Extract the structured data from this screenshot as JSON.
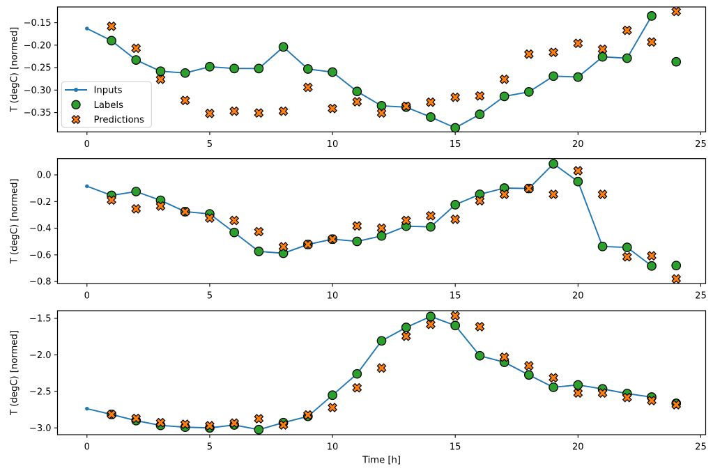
{
  "figure": {
    "background": "#ffffff",
    "xlabel": "Time [h]",
    "ylabel": "T (degC) [normed]"
  },
  "legend": {
    "entries": [
      {
        "label": "Inputs",
        "marker": "line-dot",
        "color": "#1f77b4"
      },
      {
        "label": "Labels",
        "marker": "circle",
        "color": "#2ca02c"
      },
      {
        "label": "Predictions",
        "marker": "x",
        "color": "#ff7f0e"
      }
    ]
  },
  "colors": {
    "inputs": "#1f77b4",
    "labels": "#2ca02c",
    "predictions": "#ff7f0e",
    "marker_edge": "#000000",
    "spine": "#000000",
    "legend_border": "#cccccc"
  },
  "chart_data": [
    {
      "type": "line",
      "ylabel": "T (degC) [normed]",
      "grid": false,
      "xlim": [
        -1.2,
        25.2
      ],
      "ylim": [
        -0.393,
        -0.115
      ],
      "x_ticks": [
        0,
        5,
        10,
        15,
        20,
        25
      ],
      "x_tick_labels": [
        "0",
        "5",
        "10",
        "15",
        "20",
        "25"
      ],
      "y_ticks": [
        -0.15,
        -0.2,
        -0.25,
        -0.3,
        -0.35
      ],
      "y_tick_labels": [
        "−0.15",
        "−0.20",
        "−0.25",
        "−0.30",
        "−0.35"
      ],
      "series": [
        {
          "name": "Inputs",
          "style": "line",
          "color": "#1f77b4",
          "x": [
            0,
            1,
            2,
            3,
            4,
            5,
            6,
            7,
            8,
            9,
            10,
            11,
            12,
            13,
            14,
            15,
            16,
            17,
            18,
            19,
            20,
            21,
            22,
            23
          ],
          "y": [
            -0.163,
            -0.19,
            -0.233,
            -0.258,
            -0.262,
            -0.248,
            -0.252,
            -0.252,
            -0.204,
            -0.253,
            -0.26,
            -0.303,
            -0.335,
            -0.338,
            -0.36,
            -0.384,
            -0.354,
            -0.314,
            -0.304,
            -0.269,
            -0.271,
            -0.226,
            -0.229,
            -0.135
          ]
        },
        {
          "name": "Labels",
          "style": "scatter-circle",
          "color": "#2ca02c",
          "x": [
            1,
            2,
            3,
            4,
            5,
            6,
            7,
            8,
            9,
            10,
            11,
            12,
            13,
            14,
            15,
            16,
            17,
            18,
            19,
            20,
            21,
            22,
            23,
            24
          ],
          "y": [
            -0.19,
            -0.233,
            -0.258,
            -0.262,
            -0.248,
            -0.252,
            -0.252,
            -0.204,
            -0.253,
            -0.26,
            -0.303,
            -0.335,
            -0.338,
            -0.36,
            -0.384,
            -0.354,
            -0.314,
            -0.304,
            -0.269,
            -0.271,
            -0.226,
            -0.229,
            -0.135,
            -0.237
          ]
        },
        {
          "name": "Predictions",
          "style": "scatter-x",
          "color": "#ff7f0e",
          "x": [
            1,
            2,
            3,
            4,
            5,
            6,
            7,
            8,
            9,
            10,
            11,
            12,
            13,
            14,
            15,
            16,
            17,
            18,
            19,
            20,
            21,
            22,
            23,
            24
          ],
          "y": [
            -0.158,
            -0.207,
            -0.276,
            -0.323,
            -0.352,
            -0.347,
            -0.351,
            -0.347,
            -0.294,
            -0.341,
            -0.326,
            -0.351,
            -0.336,
            -0.327,
            -0.316,
            -0.313,
            -0.276,
            -0.22,
            -0.216,
            -0.196,
            -0.209,
            -0.167,
            -0.193,
            -0.125
          ]
        }
      ]
    },
    {
      "type": "line",
      "ylabel": "T (degC) [normed]",
      "grid": false,
      "xlim": [
        -1.2,
        25.2
      ],
      "ylim": [
        -0.815,
        0.122
      ],
      "x_ticks": [
        0,
        5,
        10,
        15,
        20,
        25
      ],
      "x_tick_labels": [
        "0",
        "5",
        "10",
        "15",
        "20",
        "25"
      ],
      "y_ticks": [
        0.0,
        -0.2,
        -0.4,
        -0.6,
        -0.8
      ],
      "y_tick_labels": [
        "0.0",
        "−0.2",
        "−0.4",
        "−0.6",
        "−0.8"
      ],
      "series": [
        {
          "name": "Inputs",
          "style": "line",
          "color": "#1f77b4",
          "x": [
            0,
            1,
            2,
            3,
            4,
            5,
            6,
            7,
            8,
            9,
            10,
            11,
            12,
            13,
            14,
            15,
            16,
            17,
            18,
            19,
            20,
            21,
            22,
            23
          ],
          "y": [
            -0.085,
            -0.154,
            -0.125,
            -0.191,
            -0.276,
            -0.293,
            -0.432,
            -0.574,
            -0.588,
            -0.522,
            -0.482,
            -0.499,
            -0.458,
            -0.385,
            -0.39,
            -0.224,
            -0.146,
            -0.099,
            -0.102,
            0.083,
            -0.05,
            -0.537,
            -0.544,
            -0.683
          ]
        },
        {
          "name": "Labels",
          "style": "scatter-circle",
          "color": "#2ca02c",
          "x": [
            1,
            2,
            3,
            4,
            5,
            6,
            7,
            8,
            9,
            10,
            11,
            12,
            13,
            14,
            15,
            16,
            17,
            18,
            19,
            20,
            21,
            22,
            23,
            24
          ],
          "y": [
            -0.154,
            -0.125,
            -0.191,
            -0.276,
            -0.293,
            -0.432,
            -0.574,
            -0.588,
            -0.522,
            -0.482,
            -0.499,
            -0.458,
            -0.385,
            -0.39,
            -0.224,
            -0.146,
            -0.099,
            -0.102,
            0.083,
            -0.05,
            -0.537,
            -0.544,
            -0.683,
            -0.68
          ]
        },
        {
          "name": "Predictions",
          "style": "scatter-x",
          "color": "#ff7f0e",
          "x": [
            1,
            2,
            3,
            4,
            5,
            6,
            7,
            8,
            9,
            10,
            11,
            12,
            13,
            14,
            15,
            16,
            17,
            18,
            19,
            20,
            21,
            22,
            23,
            24
          ],
          "y": [
            -0.189,
            -0.255,
            -0.234,
            -0.276,
            -0.324,
            -0.342,
            -0.426,
            -0.539,
            -0.522,
            -0.482,
            -0.383,
            -0.4,
            -0.342,
            -0.307,
            -0.333,
            -0.194,
            -0.146,
            -0.102,
            -0.146,
            0.031,
            -0.146,
            -0.615,
            -0.607,
            -0.78
          ]
        }
      ]
    },
    {
      "type": "line",
      "ylabel": "T (degC) [normed]",
      "xlabel": "Time [h]",
      "grid": false,
      "xlim": [
        -1.2,
        25.2
      ],
      "ylim": [
        -3.093,
        -1.395
      ],
      "x_ticks": [
        0,
        5,
        10,
        15,
        20,
        25
      ],
      "x_tick_labels": [
        "0",
        "5",
        "10",
        "15",
        "20",
        "25"
      ],
      "y_ticks": [
        -1.5,
        -2.0,
        -2.5,
        -3.0
      ],
      "y_tick_labels": [
        "−1.5",
        "−2.0",
        "−2.5",
        "−3.0"
      ],
      "series": [
        {
          "name": "Inputs",
          "style": "line",
          "color": "#1f77b4",
          "x": [
            0,
            1,
            2,
            3,
            4,
            5,
            6,
            7,
            8,
            9,
            10,
            11,
            12,
            13,
            14,
            15,
            16,
            17,
            18,
            19,
            20,
            21,
            22,
            23
          ],
          "y": [
            -2.737,
            -2.816,
            -2.9,
            -2.966,
            -2.99,
            -3.0,
            -2.96,
            -3.024,
            -2.928,
            -2.842,
            -2.552,
            -2.26,
            -1.808,
            -1.624,
            -1.474,
            -1.598,
            -2.012,
            -2.101,
            -2.275,
            -2.444,
            -2.412,
            -2.466,
            -2.53,
            -2.578
          ]
        },
        {
          "name": "Labels",
          "style": "scatter-circle",
          "color": "#2ca02c",
          "x": [
            1,
            2,
            3,
            4,
            5,
            6,
            7,
            8,
            9,
            10,
            11,
            12,
            13,
            14,
            15,
            16,
            17,
            18,
            19,
            20,
            21,
            22,
            23,
            24
          ],
          "y": [
            -2.816,
            -2.9,
            -2.966,
            -2.99,
            -3.0,
            -2.96,
            -3.024,
            -2.928,
            -2.842,
            -2.552,
            -2.26,
            -1.808,
            -1.624,
            -1.474,
            -1.598,
            -2.012,
            -2.101,
            -2.275,
            -2.444,
            -2.412,
            -2.466,
            -2.53,
            -2.578,
            -2.664
          ]
        },
        {
          "name": "Predictions",
          "style": "scatter-x",
          "color": "#ff7f0e",
          "x": [
            1,
            2,
            3,
            4,
            5,
            6,
            7,
            8,
            9,
            10,
            11,
            12,
            13,
            14,
            15,
            16,
            17,
            18,
            19,
            20,
            21,
            22,
            23,
            24
          ],
          "y": [
            -2.816,
            -2.87,
            -2.928,
            -2.95,
            -2.97,
            -2.934,
            -2.874,
            -2.96,
            -2.823,
            -2.721,
            -2.451,
            -2.18,
            -1.745,
            -1.583,
            -1.465,
            -1.614,
            -2.031,
            -2.149,
            -2.314,
            -2.523,
            -2.523,
            -2.584,
            -2.626,
            -2.683
          ]
        }
      ]
    }
  ]
}
